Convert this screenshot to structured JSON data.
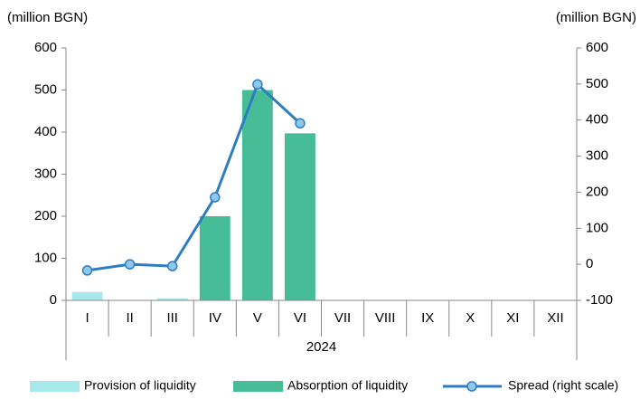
{
  "chart_data": {
    "type": "bar",
    "y_label": "(million BGN)",
    "y2_label": "(million BGN)",
    "categories": [
      "I",
      "II",
      "III",
      "IV",
      "V",
      "VI",
      "VII",
      "VIII",
      "IX",
      "X",
      "XI",
      "XII"
    ],
    "x_group_label": "2024",
    "series": [
      {
        "name": "Provision of liquidity",
        "type": "bar",
        "color": "#a6e8ec",
        "values": [
          20,
          null,
          5,
          null,
          null,
          null,
          null,
          null,
          null,
          null,
          null,
          null
        ]
      },
      {
        "name": "Absorption of liquidity",
        "type": "bar",
        "color": "#46bd96",
        "values": [
          null,
          null,
          null,
          200,
          500,
          397,
          null,
          null,
          null,
          null,
          null,
          null
        ]
      },
      {
        "name": "Spread (right scale)",
        "type": "line",
        "axis": "y2",
        "color": "#2e7dc0",
        "marker_color": "#8ec9ea",
        "values": [
          -17,
          0,
          -5,
          186,
          499,
          391,
          null,
          null,
          null,
          null,
          null,
          null
        ]
      }
    ],
    "ylim": [
      0,
      600
    ],
    "yticks": [
      0,
      100,
      200,
      300,
      400,
      500,
      600
    ],
    "y2lim": [
      -100,
      600
    ],
    "y2ticks": [
      -100,
      0,
      100,
      200,
      300,
      400,
      500,
      600
    ],
    "legend": "bottom",
    "grid": false
  }
}
